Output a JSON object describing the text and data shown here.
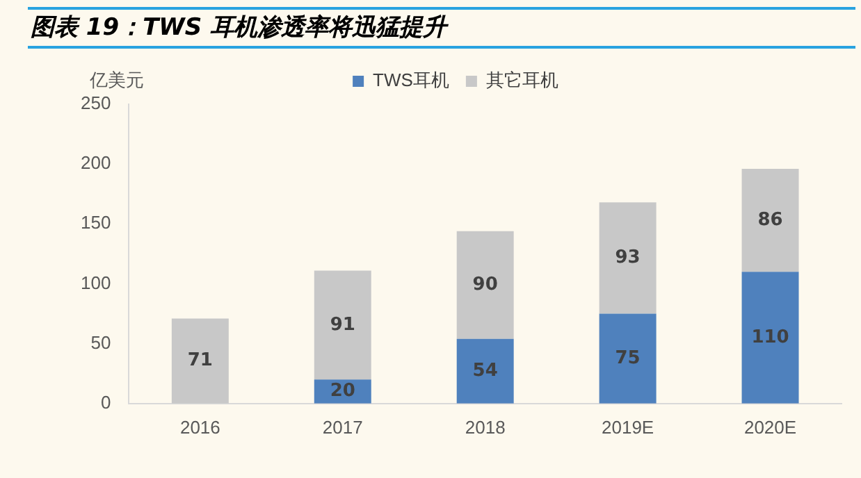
{
  "chart_data": {
    "type": "bar",
    "title": "图表 19：TWS 耳机渗透率将迅猛提升",
    "ylabel": "亿美元",
    "categories": [
      "2016",
      "2017",
      "2018",
      "2019E",
      "2020E"
    ],
    "series": [
      {
        "name": "TWS耳机",
        "color": "#4f81bd",
        "values": [
          null,
          20,
          54,
          75,
          110
        ]
      },
      {
        "name": "其它耳机",
        "color": "#c8c8c8",
        "values": [
          71,
          91,
          90,
          93,
          86
        ]
      }
    ],
    "stacked": true,
    "ylim": [
      0,
      250
    ],
    "yticks": [
      0,
      50,
      100,
      150,
      200,
      250
    ],
    "grid": false,
    "legend": "top",
    "data_labels": true
  }
}
